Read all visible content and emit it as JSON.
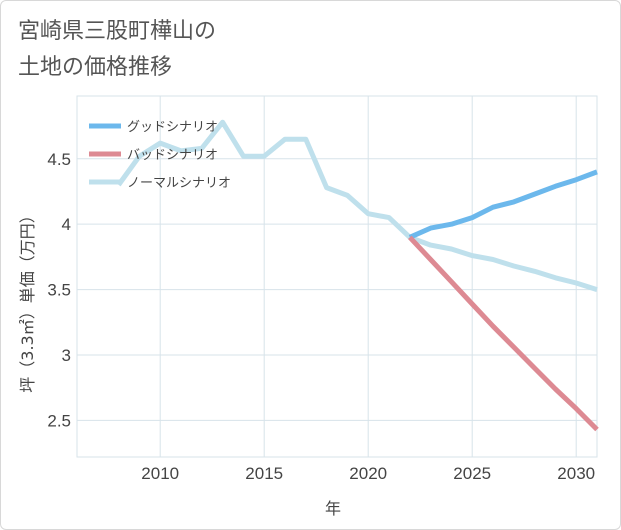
{
  "title_line1": "宮崎県三股町樺山の",
  "title_line2": "土地の価格推移",
  "chart_data": {
    "type": "line",
    "xlabel": "年",
    "ylabel": "坪（3.3㎡）単価（万円）",
    "xlim": [
      2006,
      2031
    ],
    "ylim": [
      2.22,
      4.98
    ],
    "xticks": [
      2010,
      2015,
      2020,
      2025,
      2030
    ],
    "yticks": [
      2.5,
      3,
      3.5,
      4,
      4.5
    ],
    "ytick_labels": [
      "2.5",
      "3",
      "3.5",
      "4",
      "4.5"
    ],
    "grid": true,
    "legend_position": "top-left",
    "series": [
      {
        "name": "グッドシナリオ",
        "color": "#6cb8ec",
        "x": [
          2022,
          2023,
          2024,
          2025,
          2026,
          2027,
          2028,
          2029,
          2030,
          2031
        ],
        "y": [
          3.9,
          3.97,
          4.0,
          4.05,
          4.13,
          4.17,
          4.23,
          4.29,
          4.34,
          4.4
        ]
      },
      {
        "name": "バッドシナリオ",
        "color": "#dd8a93",
        "x": [
          2022,
          2023,
          2024,
          2025,
          2026,
          2027,
          2028,
          2029,
          2030,
          2031
        ],
        "y": [
          3.9,
          3.73,
          3.56,
          3.39,
          3.22,
          3.06,
          2.9,
          2.74,
          2.59,
          2.43
        ]
      },
      {
        "name": "ノーマルシナリオ",
        "color": "#bfe0ec",
        "x": [
          2008,
          2009,
          2010,
          2011,
          2012,
          2013,
          2014,
          2015,
          2016,
          2017,
          2018,
          2019,
          2020,
          2021,
          2022,
          2023,
          2024,
          2025,
          2026,
          2027,
          2028,
          2029,
          2030,
          2031
        ],
        "y": [
          4.3,
          4.52,
          4.62,
          4.56,
          4.58,
          4.78,
          4.52,
          4.52,
          4.65,
          4.65,
          4.28,
          4.22,
          4.08,
          4.05,
          3.9,
          3.84,
          3.81,
          3.76,
          3.73,
          3.68,
          3.64,
          3.59,
          3.55,
          3.5
        ]
      }
    ]
  }
}
